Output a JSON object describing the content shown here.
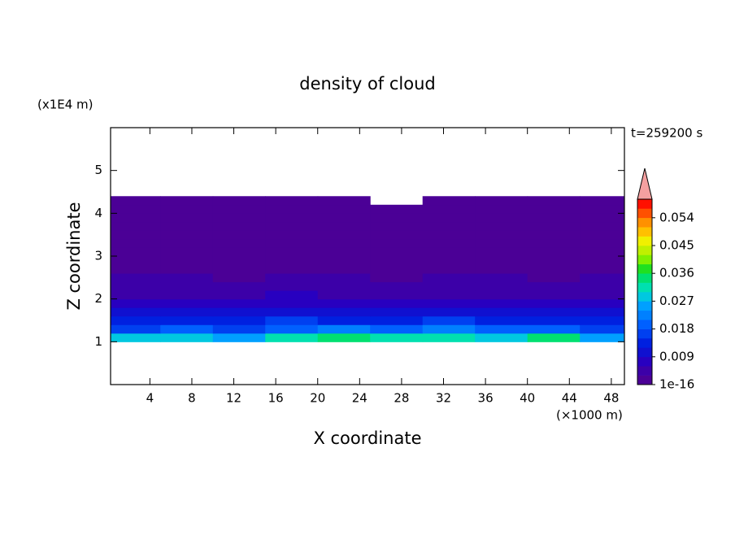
{
  "chart_data": {
    "type": "contour",
    "title": "density of cloud",
    "x_label": "X coordinate",
    "y_label": "Z coordinate",
    "x_unit": "(×1000 m)",
    "y_unit": "(x1E4 m)",
    "annotation": "t=259200 s",
    "xlim": [
      0.25,
      49.25
    ],
    "ylim": [
      0,
      6
    ],
    "xticks": [
      4,
      8,
      12,
      16,
      20,
      24,
      28,
      32,
      36,
      40,
      44,
      48
    ],
    "yticks": [
      1,
      2,
      3,
      4,
      5
    ],
    "xbins": [
      0.25,
      5,
      10,
      15,
      20,
      25,
      30,
      35,
      40,
      45,
      49.25
    ],
    "ybins": [
      1.0,
      1.2,
      1.4,
      1.6,
      1.8,
      2.0,
      2.2,
      2.4,
      2.6,
      2.8,
      3.0,
      3.2,
      3.4,
      3.6,
      3.8,
      4.0,
      4.2,
      4.4
    ],
    "values": [
      [
        0.028,
        0.03,
        0.026,
        0.032,
        0.035,
        0.031,
        0.033,
        0.03,
        0.034,
        0.027
      ],
      [
        0.018,
        0.02,
        0.017,
        0.021,
        0.022,
        0.019,
        0.023,
        0.02,
        0.021,
        0.018
      ],
      [
        0.014,
        0.015,
        0.013,
        0.016,
        0.014,
        0.015,
        0.017,
        0.014,
        0.015,
        0.013
      ],
      [
        0.01,
        0.012,
        0.011,
        0.012,
        0.01,
        0.011,
        0.012,
        0.011,
        0.01,
        0.011
      ],
      [
        0.008,
        0.009,
        0.007,
        0.009,
        0.008,
        0.008,
        0.009,
        0.007,
        0.008,
        0.008
      ],
      [
        0.006,
        0.006,
        0.005,
        0.007,
        0.006,
        0.006,
        0.006,
        0.005,
        0.006,
        0.006
      ],
      [
        0.005,
        0.004,
        0.005,
        0.005,
        0.004,
        0.005,
        0.005,
        0.004,
        0.005,
        0.004
      ],
      [
        0.004,
        0.004,
        0.003,
        0.004,
        0.004,
        0.003,
        0.004,
        0.004,
        0.003,
        0.004
      ],
      [
        0.003,
        0.003,
        0.003,
        0.003,
        0.003,
        0.003,
        0.003,
        0.003,
        0.003,
        0.003
      ],
      [
        0.002,
        0.002,
        0.002,
        0.002,
        0.002,
        0.002,
        0.002,
        0.002,
        0.002,
        0.002
      ],
      [
        0.001,
        0.001,
        0.001,
        0.001,
        0.001,
        0.001,
        0.001,
        0.001,
        0.001,
        0.001
      ],
      [
        0.001,
        0.001,
        0.001,
        0.001,
        0.001,
        0.001,
        0.001,
        0.001,
        0.001,
        0.001
      ],
      [
        0.001,
        0.001,
        0.001,
        0.001,
        0.001,
        0.001,
        0.001,
        0.001,
        0.001,
        0.001
      ],
      [
        0.001,
        0.001,
        0.001,
        0.001,
        0.001,
        0.001,
        0.001,
        0.001,
        0.001,
        0.001
      ],
      [
        0.001,
        0.001,
        0.001,
        0.001,
        0.001,
        0.001,
        0.001,
        0.001,
        0.001,
        0.001
      ],
      [
        0.001,
        0.001,
        0.001,
        0.001,
        0.001,
        0.001,
        0.001,
        0.001,
        0.001,
        0.001
      ],
      [
        0.001,
        0.001,
        0.001,
        0.001,
        0.001,
        null,
        0.001,
        0.001,
        0.001,
        0.001
      ]
    ],
    "colorbar": {
      "lim": [
        1e-16,
        0.06
      ],
      "step": 0.003,
      "ticks": [
        1e-16,
        0.009,
        0.018,
        0.027,
        0.036,
        0.045,
        0.054
      ],
      "colors": [
        "#4b0096",
        "#3c00a8",
        "#2800c0",
        "#1010d0",
        "#0020e0",
        "#0040f0",
        "#0060ff",
        "#0080ff",
        "#00a0ff",
        "#00c8e0",
        "#00e0b0",
        "#00e070",
        "#20e020",
        "#80f000",
        "#c0f000",
        "#f0f000",
        "#ffc000",
        "#ff9000",
        "#ff5000",
        "#ff1000"
      ],
      "extend_color": "#f4a0a0"
    }
  }
}
